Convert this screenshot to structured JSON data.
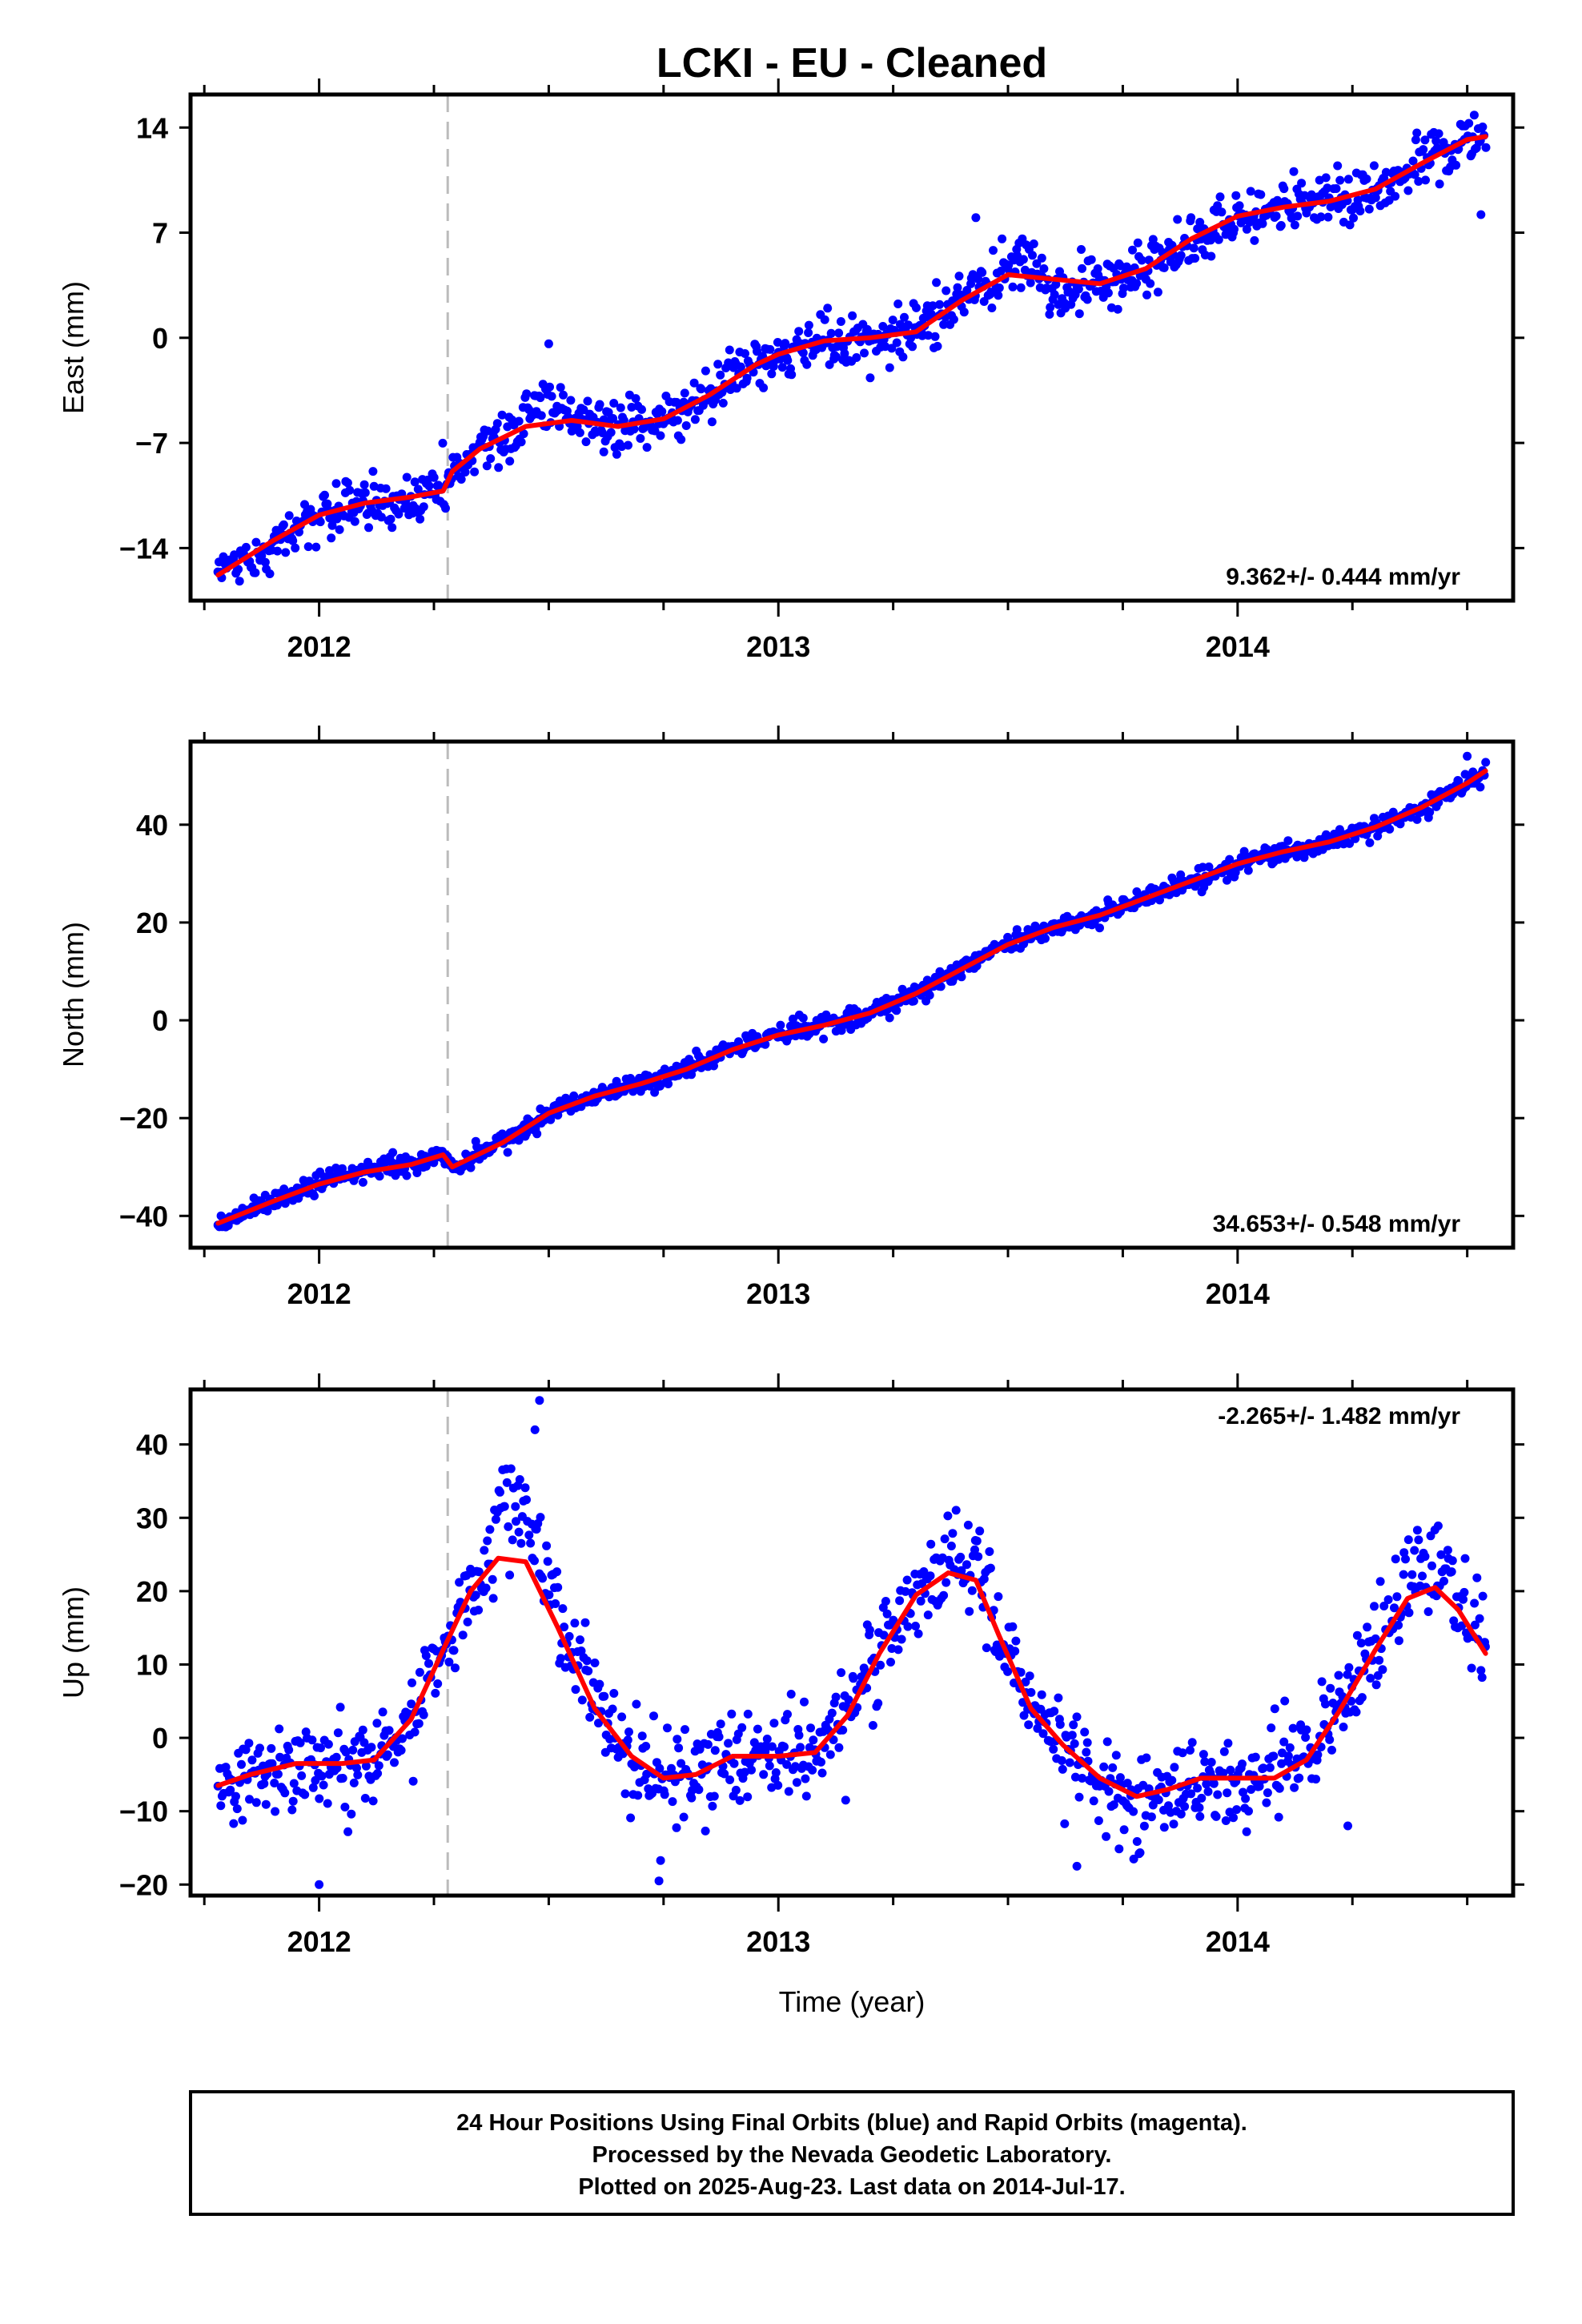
{
  "title": "LCKI  - EU - Cleaned",
  "colors": {
    "points": "#0000ff",
    "fit": "#ff0000",
    "break_line": "#bbbbbb",
    "frame": "#000000"
  },
  "x_axis_label": "Time (year)",
  "break_epoch": 2012.28,
  "data_span": [
    2011.78,
    2014.54
  ],
  "chart_data": [
    {
      "type": "scatter",
      "name": "east",
      "ylabel": "East (mm)",
      "rate_text": "9.362+/- 0.444 mm/yr",
      "xlim": [
        2011.72,
        2014.6
      ],
      "ylim": [
        -17.5,
        16.2
      ],
      "yticks": [
        14,
        7,
        0,
        -7,
        -14
      ],
      "ytick_labels": [
        "14",
        "7",
        "0",
        "−7",
        "−14"
      ],
      "xticks": [
        2012,
        2013,
        2014
      ],
      "xtick_labels": [
        "2012",
        "2013",
        "2014"
      ],
      "fit": {
        "x": [
          2011.78,
          2011.9,
          2012.0,
          2012.1,
          2012.2,
          2012.27,
          2012.29,
          2012.35,
          2012.45,
          2012.55,
          2012.65,
          2012.75,
          2012.85,
          2012.95,
          2013.0,
          2013.1,
          2013.2,
          2013.3,
          2013.4,
          2013.5,
          2013.6,
          2013.7,
          2013.8,
          2013.9,
          2014.0,
          2014.1,
          2014.2,
          2014.3,
          2014.4,
          2014.5,
          2014.54
        ],
        "y": [
          -15.8,
          -13.5,
          -11.8,
          -11.0,
          -10.6,
          -10.2,
          -8.9,
          -7.4,
          -5.9,
          -5.5,
          -5.9,
          -5.4,
          -3.8,
          -1.8,
          -1.1,
          -0.2,
          0.0,
          0.4,
          2.5,
          4.2,
          3.9,
          3.6,
          4.6,
          6.6,
          8.1,
          8.7,
          9.1,
          9.9,
          11.6,
          13.2,
          13.4
        ]
      },
      "points": {
        "seed": 1,
        "n": 1000,
        "noise": 0.9,
        "excursions": [
          {
            "from": 2012.45,
            "to": 2012.55,
            "delta": 1.3
          },
          {
            "from": 2013.48,
            "to": 2013.56,
            "delta": 0.9
          },
          {
            "from": 2013.58,
            "to": 2013.65,
            "delta": -0.9
          }
        ],
        "outliers": [
          {
            "x": 2012.5,
            "y": -0.4
          },
          {
            "x": 2013.43,
            "y": 8.0
          },
          {
            "x": 2014.53,
            "y": 8.2
          },
          {
            "x": 2012.62,
            "y": -7.6
          }
        ]
      }
    },
    {
      "type": "scatter",
      "name": "north",
      "ylabel": "North (mm)",
      "rate_text": "34.653+/- 0.548 mm/yr",
      "xlim": [
        2011.72,
        2014.6
      ],
      "ylim": [
        -46.5,
        57
      ],
      "yticks": [
        40,
        20,
        0,
        -20,
        -40
      ],
      "ytick_labels": [
        "40",
        "20",
        "0",
        "−20",
        "−40"
      ],
      "xticks": [
        2012,
        2013,
        2014
      ],
      "xtick_labels": [
        "2012",
        "2013",
        "2014"
      ],
      "fit": {
        "x": [
          2011.78,
          2011.9,
          2012.0,
          2012.1,
          2012.2,
          2012.27,
          2012.29,
          2012.4,
          2012.5,
          2012.6,
          2012.7,
          2012.8,
          2012.9,
          2013.0,
          2013.1,
          2013.2,
          2013.3,
          2013.4,
          2013.5,
          2013.6,
          2013.7,
          2013.8,
          2013.9,
          2014.0,
          2014.1,
          2014.2,
          2014.3,
          2014.4,
          2014.5,
          2014.54
        ],
        "y": [
          -41.5,
          -37.0,
          -33.5,
          -31.0,
          -29.5,
          -27.5,
          -30.0,
          -25.0,
          -19.0,
          -15.5,
          -13.0,
          -10.0,
          -6.0,
          -3.0,
          -1.0,
          1.5,
          5.5,
          10.5,
          15.5,
          19.0,
          21.5,
          25.0,
          28.5,
          32.0,
          34.5,
          36.5,
          39.5,
          43.5,
          48.5,
          51.0
        ]
      },
      "points": {
        "seed": 2,
        "n": 1000,
        "noise": 1.0,
        "excursions": [],
        "outliers": [
          {
            "x": 2014.5,
            "y": 54.0
          }
        ]
      }
    },
    {
      "type": "scatter",
      "name": "up",
      "ylabel": "Up (mm)",
      "rate_text": "-2.265+/- 1.482 mm/yr",
      "xlim": [
        2011.72,
        2014.6
      ],
      "ylim": [
        -21.5,
        47.5
      ],
      "yticks": [
        40,
        30,
        20,
        10,
        0,
        -10,
        -20
      ],
      "ytick_labels": [
        "40",
        "30",
        "20",
        "10",
        "0",
        "−10",
        "−20"
      ],
      "xticks": [
        2012,
        2013,
        2014
      ],
      "xtick_labels": [
        "2012",
        "2013",
        "2014"
      ],
      "fit": {
        "x": [
          2011.78,
          2011.85,
          2011.95,
          2012.05,
          2012.12,
          2012.2,
          2012.27,
          2012.33,
          2012.39,
          2012.45,
          2012.52,
          2012.6,
          2012.68,
          2012.75,
          2012.82,
          2012.9,
          2013.0,
          2013.08,
          2013.15,
          2013.22,
          2013.3,
          2013.37,
          2013.43,
          2013.48,
          2013.55,
          2013.62,
          2013.7,
          2013.78,
          2013.85,
          2013.92,
          2014.0,
          2014.08,
          2014.15,
          2014.22,
          2014.3,
          2014.37,
          2014.43,
          2014.48,
          2014.54
        ],
        "y": [
          -6.5,
          -5.0,
          -3.5,
          -3.5,
          -3.0,
          2.5,
          12.0,
          20.0,
          24.5,
          24.0,
          15.0,
          4.0,
          -2.5,
          -5.5,
          -5.0,
          -2.5,
          -2.5,
          -2.0,
          3.0,
          11.5,
          19.5,
          22.5,
          21.5,
          14.0,
          4.0,
          -1.0,
          -5.5,
          -8.0,
          -7.0,
          -5.5,
          -5.5,
          -5.5,
          -3.0,
          3.5,
          12.0,
          19.0,
          20.5,
          17.5,
          11.5
        ]
      },
      "points": {
        "seed": 3,
        "n": 1000,
        "noise": 3.2,
        "excursions": [
          {
            "from": 2012.38,
            "to": 2012.52,
            "delta": 6.0
          },
          {
            "from": 2013.36,
            "to": 2013.46,
            "delta": 3.0
          },
          {
            "from": 2014.36,
            "to": 2014.47,
            "delta": 3.0
          }
        ],
        "outliers": [
          {
            "x": 2012.48,
            "y": 46.0
          },
          {
            "x": 2012.47,
            "y": 42.0
          },
          {
            "x": 2012.0,
            "y": -20.0
          },
          {
            "x": 2012.74,
            "y": -19.5
          },
          {
            "x": 2013.65,
            "y": -17.5
          },
          {
            "x": 2014.24,
            "y": -12.0
          }
        ]
      }
    }
  ],
  "caption": {
    "line1": "24 Hour Positions Using Final Orbits (blue) and Rapid Orbits (magenta).",
    "line2": "Processed by the Nevada Geodetic Laboratory.",
    "line3": "Plotted on 2025-Aug-23. Last data on 2014-Jul-17."
  }
}
